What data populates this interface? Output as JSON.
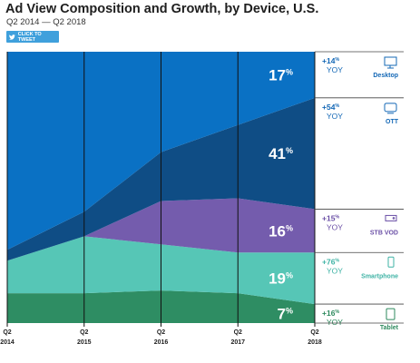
{
  "title": "Ad View Composition and Growth, by Device, U.S.",
  "subtitle": "Q2 2014 — Q2 2018",
  "tweet_button": {
    "label": "CLICK TO TWEET",
    "icon": "twitter-bird-icon"
  },
  "colors": {
    "Desktop": "#0a71c4",
    "OTT": "#0f4d85",
    "STB VOD": "#745cad",
    "Smartphone": "#56c6b6",
    "Tablet": "#2e8d63"
  },
  "legend": [
    {
      "device": "Desktop",
      "growth": "+14%",
      "yoy": "YOY",
      "icon": "desktop-monitor-icon",
      "text_color": "#1468b6"
    },
    {
      "device": "OTT",
      "growth": "+54%",
      "yoy": "YOY",
      "icon": "ott-tv-icon",
      "text_color": "#1468b6"
    },
    {
      "device": "STB VOD",
      "growth": "+15%",
      "yoy": "YOY",
      "icon": "set-top-box-icon",
      "text_color": "#6a4fa6"
    },
    {
      "device": "Smartphone",
      "growth": "+76%",
      "yoy": "YOY",
      "icon": "smartphone-icon",
      "text_color": "#3fb3a5"
    },
    {
      "device": "Tablet",
      "growth": "+16%",
      "yoy": "YOY",
      "icon": "tablet-icon",
      "text_color": "#2e8a5e"
    }
  ],
  "chart_data": {
    "type": "area",
    "title": "Ad View Composition and Growth, by Device, U.S.",
    "subtitle": "Q2 2014 — Q2 2018",
    "stacked": true,
    "percent_stacked": true,
    "categories": [
      "Q2 2014",
      "Q2 2015",
      "Q2 2016",
      "Q2 2017",
      "Q2 2018"
    ],
    "ylim": [
      0,
      100
    ],
    "series": [
      {
        "name": "Tablet",
        "values": [
          11,
          11,
          12,
          11,
          7
        ]
      },
      {
        "name": "Smartphone",
        "values": [
          12,
          21,
          17,
          15,
          19
        ]
      },
      {
        "name": "STB VOD",
        "values": [
          0,
          0,
          16,
          20,
          16
        ]
      },
      {
        "name": "OTT",
        "values": [
          4,
          9,
          18,
          27,
          41
        ]
      },
      {
        "name": "Desktop",
        "values": [
          73,
          59,
          37,
          27,
          17
        ]
      }
    ],
    "end_labels": [
      {
        "series": "Desktop",
        "label": "17%"
      },
      {
        "series": "OTT",
        "label": "41%"
      },
      {
        "series": "STB VOD",
        "label": "16%"
      },
      {
        "series": "Smartphone",
        "label": "19%"
      },
      {
        "series": "Tablet",
        "label": "7%"
      }
    ],
    "tick_labels": [
      [
        "Q2",
        "2014"
      ],
      [
        "Q2",
        "2015"
      ],
      [
        "Q2",
        "2016"
      ],
      [
        "Q2",
        "2017"
      ],
      [
        "Q2",
        "2018"
      ]
    ],
    "grid": "vertical"
  }
}
